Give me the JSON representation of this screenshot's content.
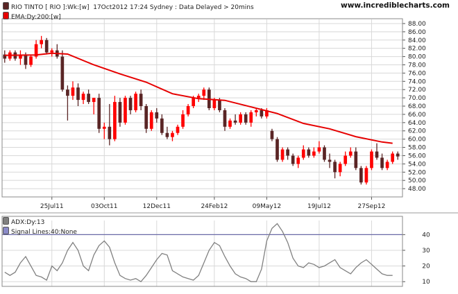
{
  "header": {
    "security": "RIO TINTO [ RIO ]:Wk:[w]",
    "timestamp": "17Oct2012 17:24",
    "location_status": "Sydney : Data Delayed > 20mins",
    "site": "www.incrediblecharts.com"
  },
  "colors": {
    "up_bar": "#ff0000",
    "down_bar": "#5a2525",
    "ema_line": "#e60000",
    "adx_line": "#808080",
    "signal_line": "#6a6aa8",
    "grid": "#d8d8d8"
  },
  "chart_data": [
    {
      "type": "candlestick",
      "title": "",
      "legend": [
        "RIO TINTO [ RIO ]:Wk:[w]",
        "EMA:Dy:200:[w]"
      ],
      "legend_placement": "top-left",
      "grid": true,
      "ylim": [
        46,
        89
      ],
      "yticks": [
        "48.00",
        "50.00",
        "52.00",
        "54.00",
        "56.00",
        "58.00",
        "60.00",
        "62.00",
        "64.00",
        "66.00",
        "68.00",
        "70.00",
        "72.00",
        "74.00",
        "76.00",
        "78.00",
        "80.00",
        "82.00",
        "84.00",
        "86.00",
        "88.00"
      ],
      "xticks": [
        {
          "label": "25Jul11",
          "index": 9
        },
        {
          "label": "03Oct11",
          "index": 19
        },
        {
          "label": "12Dec11",
          "index": 29
        },
        {
          "label": "24Feb12",
          "index": 40
        },
        {
          "label": "09May12",
          "index": 50
        },
        {
          "label": "19Jul12",
          "index": 60
        },
        {
          "label": "27Sep12",
          "index": 70
        }
      ],
      "ohlc": [
        [
          80.5,
          81.5,
          78.5,
          79.5
        ],
        [
          79.5,
          81.5,
          79.0,
          81.0
        ],
        [
          81.0,
          81.5,
          79.0,
          79.5
        ],
        [
          79.5,
          81.5,
          78.0,
          80.5
        ],
        [
          80.5,
          81.0,
          77.0,
          78.0
        ],
        [
          78.0,
          80.5,
          77.5,
          80.0
        ],
        [
          80.0,
          84.0,
          79.5,
          83.0
        ],
        [
          83.0,
          85.0,
          82.0,
          84.0
        ],
        [
          84.0,
          84.5,
          80.5,
          81.0
        ],
        [
          81.0,
          82.0,
          80.0,
          81.5
        ],
        [
          81.5,
          83.0,
          79.5,
          80.0
        ],
        [
          80.0,
          81.5,
          71.5,
          72.0
        ],
        [
          72.0,
          73.0,
          64.5,
          70.5
        ],
        [
          70.5,
          74.0,
          69.5,
          72.5
        ],
        [
          72.5,
          73.5,
          68.0,
          69.5
        ],
        [
          69.5,
          71.5,
          68.5,
          71.0
        ],
        [
          71.0,
          72.0,
          68.5,
          69.0
        ],
        [
          69.0,
          70.0,
          66.0,
          70.0
        ],
        [
          70.0,
          71.0,
          61.5,
          62.5
        ],
        [
          62.5,
          64.0,
          60.0,
          63.0
        ],
        [
          63.0,
          68.5,
          58.5,
          60.0
        ],
        [
          60.0,
          70.5,
          59.5,
          69.0
        ],
        [
          69.0,
          70.0,
          63.0,
          64.0
        ],
        [
          64.0,
          70.5,
          63.5,
          70.0
        ],
        [
          70.0,
          70.5,
          66.0,
          67.0
        ],
        [
          67.0,
          71.5,
          66.5,
          71.0
        ],
        [
          71.0,
          72.0,
          67.0,
          68.0
        ],
        [
          68.0,
          68.5,
          61.5,
          62.5
        ],
        [
          62.5,
          67.0,
          62.0,
          66.5
        ],
        [
          66.5,
          67.5,
          64.0,
          65.0
        ],
        [
          65.0,
          66.0,
          61.0,
          61.5
        ],
        [
          61.5,
          63.0,
          60.0,
          60.5
        ],
        [
          60.5,
          62.0,
          59.5,
          61.5
        ],
        [
          61.5,
          63.5,
          61.0,
          63.0
        ],
        [
          63.0,
          67.0,
          62.5,
          66.0
        ],
        [
          66.0,
          68.5,
          65.5,
          68.0
        ],
        [
          68.0,
          70.5,
          67.5,
          70.0
        ],
        [
          70.0,
          71.0,
          69.0,
          70.5
        ],
        [
          70.5,
          72.5,
          69.5,
          72.0
        ],
        [
          72.0,
          72.5,
          67.0,
          67.5
        ],
        [
          67.5,
          70.0,
          67.0,
          69.5
        ],
        [
          69.5,
          70.0,
          66.5,
          67.0
        ],
        [
          67.0,
          67.5,
          62.0,
          63.0
        ],
        [
          63.0,
          65.0,
          62.5,
          64.5
        ],
        [
          64.5,
          66.0,
          63.5,
          64.0
        ],
        [
          64.0,
          66.5,
          63.5,
          66.0
        ],
        [
          66.0,
          66.5,
          63.5,
          64.0
        ],
        [
          64.0,
          67.0,
          63.0,
          66.5
        ],
        [
          66.5,
          67.5,
          65.5,
          67.0
        ],
        [
          67.0,
          67.5,
          65.0,
          65.5
        ],
        [
          65.5,
          67.5,
          65.0,
          67.0
        ],
        [
          62.0,
          62.5,
          59.5,
          60.0
        ],
        [
          60.0,
          60.5,
          54.5,
          55.0
        ],
        [
          55.0,
          58.0,
          54.5,
          57.5
        ],
        [
          57.5,
          58.0,
          55.0,
          56.0
        ],
        [
          56.0,
          56.5,
          53.5,
          54.0
        ],
        [
          54.0,
          56.0,
          53.0,
          55.5
        ],
        [
          55.5,
          58.5,
          55.0,
          57.5
        ],
        [
          57.5,
          58.0,
          55.5,
          56.0
        ],
        [
          56.0,
          58.0,
          55.5,
          57.0
        ],
        [
          57.0,
          59.5,
          56.5,
          58.0
        ],
        [
          58.0,
          58.5,
          54.5,
          55.0
        ],
        [
          55.0,
          56.5,
          53.0,
          54.5
        ],
        [
          54.5,
          55.0,
          50.5,
          52.0
        ],
        [
          52.0,
          54.5,
          51.0,
          54.0
        ],
        [
          54.0,
          57.0,
          53.5,
          56.0
        ],
        [
          56.0,
          58.0,
          55.5,
          57.0
        ],
        [
          57.0,
          58.0,
          52.5,
          53.0
        ],
        [
          53.0,
          53.5,
          49.0,
          49.5
        ],
        [
          49.5,
          53.5,
          49.0,
          53.0
        ],
        [
          53.0,
          57.5,
          52.5,
          57.0
        ],
        [
          57.0,
          59.0,
          55.0,
          55.5
        ],
        [
          55.5,
          56.5,
          52.5,
          53.0
        ],
        [
          53.0,
          55.0,
          52.5,
          54.5
        ],
        [
          54.5,
          57.0,
          54.0,
          56.5
        ],
        [
          56.5,
          57.0,
          55.0,
          55.8
        ]
      ],
      "ema": [
        [
          0,
          80.3
        ],
        [
          6,
          80.4
        ],
        [
          9,
          80.8
        ],
        [
          12,
          80.6
        ],
        [
          17,
          78.0
        ],
        [
          22,
          75.8
        ],
        [
          27,
          73.8
        ],
        [
          32,
          71.0
        ],
        [
          37,
          69.8
        ],
        [
          42,
          69.4
        ],
        [
          47,
          67.8
        ],
        [
          52,
          66.2
        ],
        [
          57,
          63.8
        ],
        [
          62,
          62.5
        ],
        [
          67,
          60.6
        ],
        [
          72,
          59.3
        ],
        [
          74,
          59.0
        ]
      ]
    },
    {
      "type": "line",
      "title": "",
      "legend": [
        "ADX:Dy:13",
        "Signal Lines:40:None"
      ],
      "legend_placement": "top-left",
      "grid": true,
      "ylim": [
        7,
        49
      ],
      "yticks": [
        "10",
        "20",
        "30",
        "40"
      ],
      "signal_line": 40,
      "adx": [
        [
          0,
          16
        ],
        [
          1,
          14
        ],
        [
          2,
          16
        ],
        [
          3,
          22
        ],
        [
          4,
          26
        ],
        [
          5,
          20
        ],
        [
          6,
          14
        ],
        [
          7,
          13
        ],
        [
          8,
          11
        ],
        [
          9,
          20
        ],
        [
          10,
          17
        ],
        [
          11,
          22
        ],
        [
          12,
          30
        ],
        [
          13,
          35
        ],
        [
          14,
          30
        ],
        [
          15,
          20
        ],
        [
          16,
          17
        ],
        [
          17,
          27
        ],
        [
          18,
          33
        ],
        [
          19,
          36
        ],
        [
          20,
          32
        ],
        [
          21,
          22
        ],
        [
          22,
          14
        ],
        [
          23,
          12
        ],
        [
          24,
          11
        ],
        [
          25,
          12
        ],
        [
          26,
          10
        ],
        [
          27,
          14
        ],
        [
          28,
          19
        ],
        [
          29,
          24
        ],
        [
          30,
          28
        ],
        [
          31,
          27
        ],
        [
          32,
          17
        ],
        [
          33,
          15
        ],
        [
          34,
          13
        ],
        [
          35,
          12
        ],
        [
          36,
          11
        ],
        [
          37,
          14
        ],
        [
          38,
          22
        ],
        [
          39,
          30
        ],
        [
          40,
          35
        ],
        [
          41,
          33
        ],
        [
          42,
          26
        ],
        [
          43,
          20
        ],
        [
          44,
          15
        ],
        [
          45,
          13
        ],
        [
          46,
          12
        ],
        [
          47,
          10
        ],
        [
          48,
          10
        ],
        [
          49,
          18
        ],
        [
          50,
          36
        ],
        [
          51,
          44
        ],
        [
          52,
          47
        ],
        [
          53,
          42
        ],
        [
          54,
          35
        ],
        [
          55,
          25
        ],
        [
          56,
          20
        ],
        [
          57,
          19
        ],
        [
          58,
          22
        ],
        [
          59,
          21
        ],
        [
          60,
          19
        ],
        [
          61,
          20
        ],
        [
          62,
          22
        ],
        [
          63,
          24
        ],
        [
          64,
          19
        ],
        [
          65,
          17
        ],
        [
          66,
          15
        ],
        [
          67,
          19
        ],
        [
          68,
          22
        ],
        [
          69,
          24
        ],
        [
          70,
          21
        ],
        [
          71,
          18
        ],
        [
          72,
          15
        ],
        [
          73,
          14
        ],
        [
          74,
          14
        ]
      ]
    }
  ],
  "price_panel": {
    "security_legend": "RIO TINTO [ RIO ]:Wk:[w]",
    "ema_legend": "EMA:Dy:200:[w]"
  },
  "indicator_panel": {
    "adx_legend": "ADX:Dy:13",
    "signal_legend": "Signal Lines:40:None"
  }
}
